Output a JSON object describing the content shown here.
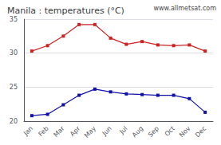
{
  "chart_data": {
    "type": "line",
    "title": "Manila : temperatures (°C)",
    "categories": [
      "Jan",
      "Feb",
      "Mar",
      "Apr",
      "May",
      "Jun",
      "Jul",
      "Aug",
      "Sep",
      "Oct",
      "Nov",
      "Dec"
    ],
    "series": [
      {
        "color": "#cc2222",
        "marker": "square",
        "values": [
          30.3,
          31.1,
          32.5,
          34.2,
          34.2,
          32.2,
          31.3,
          31.7,
          31.2,
          31.1,
          31.2,
          30.3
        ]
      },
      {
        "color": "#1111aa",
        "marker": "square",
        "values": [
          20.8,
          21.0,
          22.4,
          23.8,
          24.7,
          24.3,
          24.0,
          23.9,
          23.8,
          23.8,
          23.3,
          21.3
        ]
      }
    ],
    "ylim": [
      20,
      35
    ],
    "yticks": [
      20,
      25,
      30,
      35
    ],
    "grid": true,
    "annotations": [
      "www.allmetsat.com"
    ]
  }
}
